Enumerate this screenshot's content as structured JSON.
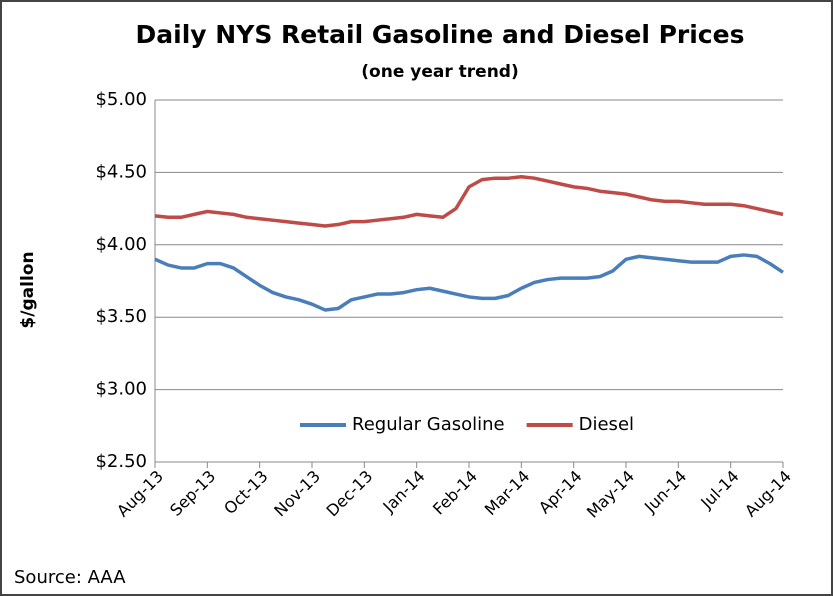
{
  "chart_data": {
    "type": "line",
    "title": "Daily NYS Retail Gasoline and Diesel Prices",
    "subtitle": "(one  year trend)",
    "y_label": "$/gallon",
    "source": "Source: AAA",
    "categories": [
      "Aug-13",
      null,
      null,
      null,
      "Sep-13",
      null,
      null,
      null,
      "Oct-13",
      null,
      null,
      null,
      "Nov-13",
      null,
      null,
      null,
      "Dec-13",
      null,
      null,
      null,
      "Jan-14",
      null,
      null,
      null,
      "Feb-14",
      null,
      null,
      null,
      "Mar-14",
      null,
      null,
      null,
      "Apr-14",
      null,
      null,
      null,
      "May-14",
      null,
      null,
      null,
      "Jun-14",
      null,
      null,
      null,
      "Jul-14",
      null,
      null,
      null,
      "Aug-14"
    ],
    "series": [
      {
        "name": "Regular Gasoline",
        "color": "#4a7ebb",
        "values": [
          3.9,
          3.86,
          3.84,
          3.84,
          3.87,
          3.87,
          3.84,
          3.78,
          3.72,
          3.67,
          3.64,
          3.62,
          3.59,
          3.55,
          3.56,
          3.62,
          3.64,
          3.66,
          3.66,
          3.67,
          3.69,
          3.7,
          3.68,
          3.66,
          3.64,
          3.63,
          3.63,
          3.65,
          3.7,
          3.74,
          3.76,
          3.77,
          3.77,
          3.77,
          3.78,
          3.82,
          3.9,
          3.92,
          3.91,
          3.9,
          3.89,
          3.88,
          3.88,
          3.88,
          3.92,
          3.93,
          3.92,
          3.87,
          3.81
        ]
      },
      {
        "name": "Diesel",
        "color": "#be4b48",
        "values": [
          4.2,
          4.19,
          4.19,
          4.21,
          4.23,
          4.22,
          4.21,
          4.19,
          4.18,
          4.17,
          4.16,
          4.15,
          4.14,
          4.13,
          4.14,
          4.16,
          4.16,
          4.17,
          4.18,
          4.19,
          4.21,
          4.2,
          4.19,
          4.25,
          4.4,
          4.45,
          4.46,
          4.46,
          4.47,
          4.46,
          4.44,
          4.42,
          4.4,
          4.39,
          4.37,
          4.36,
          4.35,
          4.33,
          4.31,
          4.3,
          4.3,
          4.29,
          4.28,
          4.28,
          4.28,
          4.27,
          4.25,
          4.23,
          4.21
        ]
      }
    ],
    "ylim": [
      2.5,
      5.0
    ],
    "yticks": [
      {
        "value": 2.5,
        "label": "$2.50"
      },
      {
        "value": 3.0,
        "label": "$3.00"
      },
      {
        "value": 3.5,
        "label": "$3.50"
      },
      {
        "value": 4.0,
        "label": "$4.00"
      },
      {
        "value": 4.5,
        "label": "$4.50"
      },
      {
        "value": 5.0,
        "label": "$5.00"
      }
    ],
    "grid": true,
    "legend": "bottom"
  }
}
